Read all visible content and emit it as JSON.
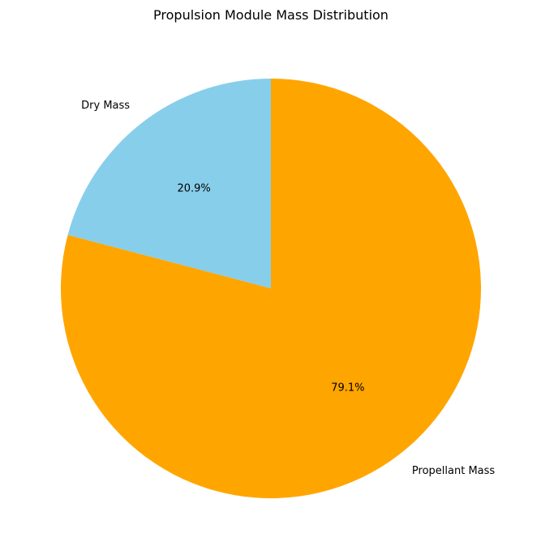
{
  "chart_data": {
    "type": "pie",
    "title": "Propulsion Module Mass Distribution",
    "slices": [
      {
        "label": "Dry Mass",
        "value": 20.9,
        "pct_label": "20.9%",
        "color": "#87CEEB"
      },
      {
        "label": "Propellant Mass",
        "value": 79.1,
        "pct_label": "79.1%",
        "color": "#FFA500"
      }
    ],
    "start_angle_deg": 90,
    "direction": "counterclockwise",
    "legend": "none"
  }
}
